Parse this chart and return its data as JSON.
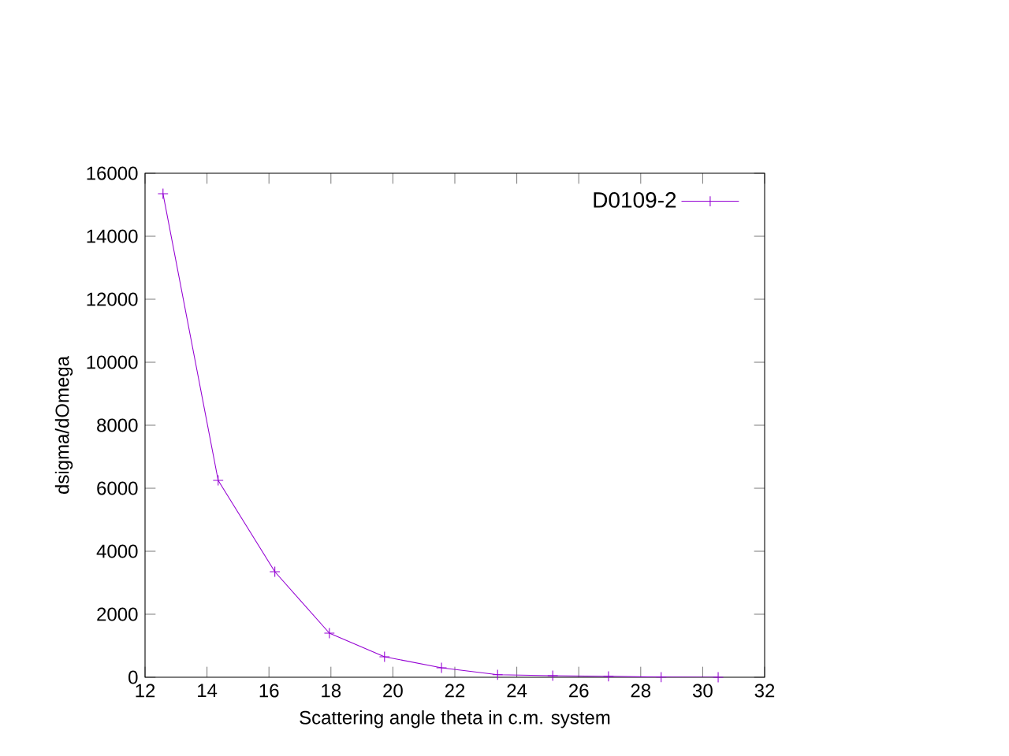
{
  "chart_data": {
    "type": "line",
    "xlabel": "Scattering angle theta in c.m. system",
    "ylabel": "dsigma/dOmega",
    "x": [
      12.58,
      14.36,
      16.19,
      17.95,
      19.73,
      21.57,
      23.38,
      25.16,
      26.96,
      28.66,
      30.5
    ],
    "series": [
      {
        "name": "D0109-2",
        "color": "#9400d3",
        "values": [
          15350,
          6250,
          3350,
          1400,
          650,
          300,
          80,
          50,
          30,
          5,
          0
        ]
      }
    ],
    "xlim": [
      12,
      32
    ],
    "xticks": [
      12,
      14,
      16,
      18,
      20,
      22,
      24,
      26,
      28,
      30,
      32
    ],
    "ylim": [
      0,
      16000
    ],
    "yticks": [
      0,
      2000,
      4000,
      6000,
      8000,
      10000,
      12000,
      14000,
      16000
    ],
    "grid": false,
    "legend": "top right",
    "marker": "cross",
    "line_style": "solid"
  }
}
